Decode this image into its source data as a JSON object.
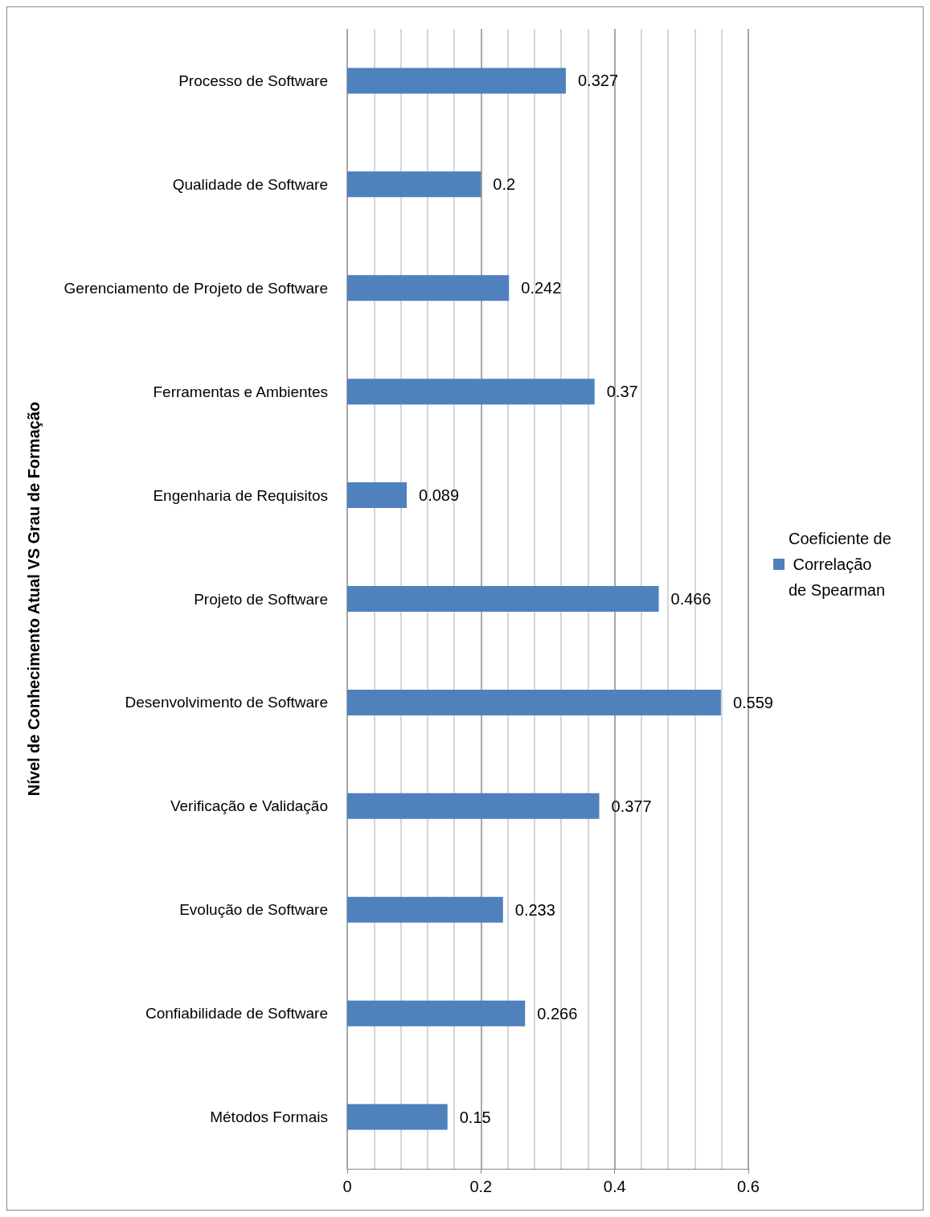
{
  "chart_data": {
    "type": "bar",
    "orientation": "horizontal",
    "ylabel": "Nível de Conhecimento Atual VS Grau de Formação",
    "categories": [
      "Processo de Software",
      "Qualidade de Software",
      "Gerenciamento de Projeto de Software",
      "Ferramentas e Ambientes",
      "Engenharia de Requisitos",
      "Projeto de Software",
      "Desenvolvimento de Software",
      "Verificação e Validação",
      "Evolução de Software",
      "Confiabilidade de Software",
      "Métodos Formais"
    ],
    "series": [
      {
        "name": "Coeficiente de Correlação de Spearman",
        "color": "#4f81bd",
        "values": [
          0.327,
          0.2,
          0.242,
          0.37,
          0.089,
          0.466,
          0.559,
          0.377,
          0.233,
          0.266,
          0.15
        ]
      }
    ],
    "xlim": [
      0,
      0.6
    ],
    "xticks": [
      0,
      0.2,
      0.4,
      0.6
    ],
    "grid": "x",
    "legend": "right",
    "data_labels": true
  }
}
